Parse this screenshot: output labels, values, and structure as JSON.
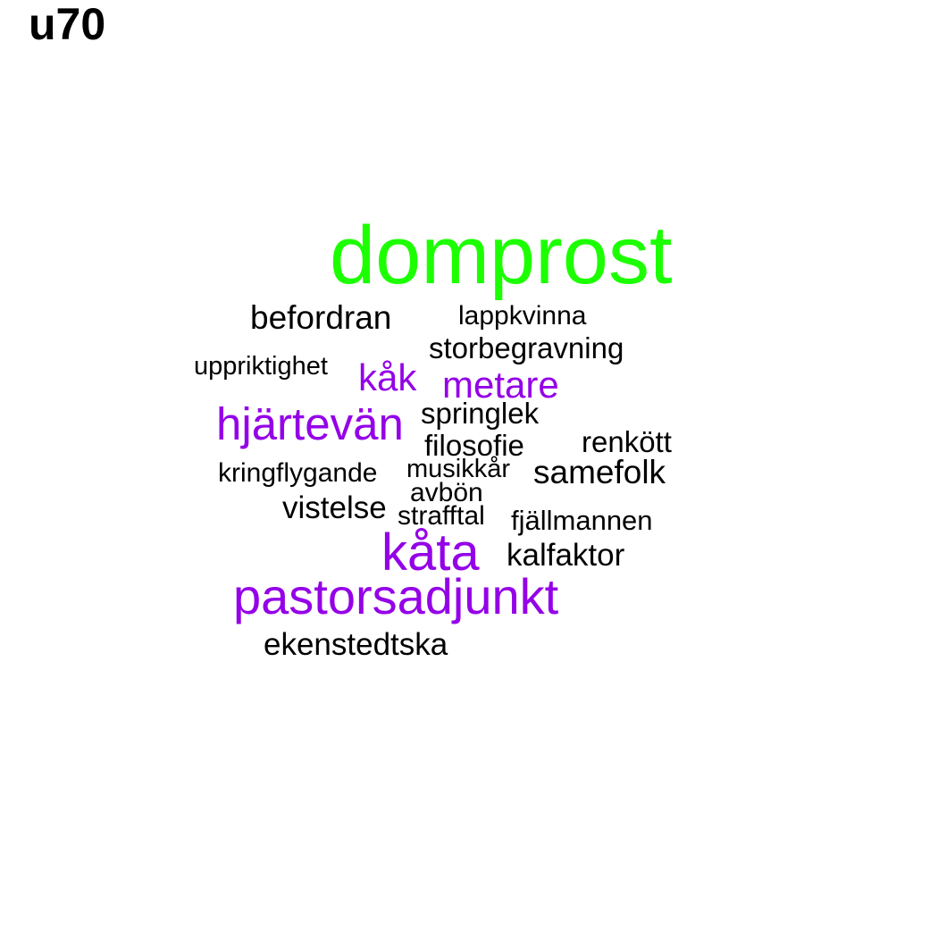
{
  "title": "u70",
  "colors": {
    "top": "#1cff00",
    "high": "#9400e8",
    "normal": "#000000"
  },
  "words": [
    {
      "text": "domprost",
      "tier": "top"
    },
    {
      "text": "befordran",
      "tier": "normal"
    },
    {
      "text": "lappkvinna",
      "tier": "normal"
    },
    {
      "text": "storbegravning",
      "tier": "normal"
    },
    {
      "text": "uppriktighet",
      "tier": "normal"
    },
    {
      "text": "kåk",
      "tier": "high"
    },
    {
      "text": "metare",
      "tier": "high"
    },
    {
      "text": "hjärtevän",
      "tier": "high"
    },
    {
      "text": "springlek",
      "tier": "normal"
    },
    {
      "text": "filosofie",
      "tier": "normal"
    },
    {
      "text": "renkött",
      "tier": "normal"
    },
    {
      "text": "kringflygande",
      "tier": "normal"
    },
    {
      "text": "musikkår",
      "tier": "normal"
    },
    {
      "text": "samefolk",
      "tier": "normal"
    },
    {
      "text": "avbön",
      "tier": "normal"
    },
    {
      "text": "vistelse",
      "tier": "normal"
    },
    {
      "text": "strafftal",
      "tier": "normal"
    },
    {
      "text": "fjällmannen",
      "tier": "normal"
    },
    {
      "text": "kåta",
      "tier": "high"
    },
    {
      "text": "kalfaktor",
      "tier": "normal"
    },
    {
      "text": "pastorsadjunkt",
      "tier": "high"
    },
    {
      "text": "ekenstedtska",
      "tier": "normal"
    }
  ]
}
